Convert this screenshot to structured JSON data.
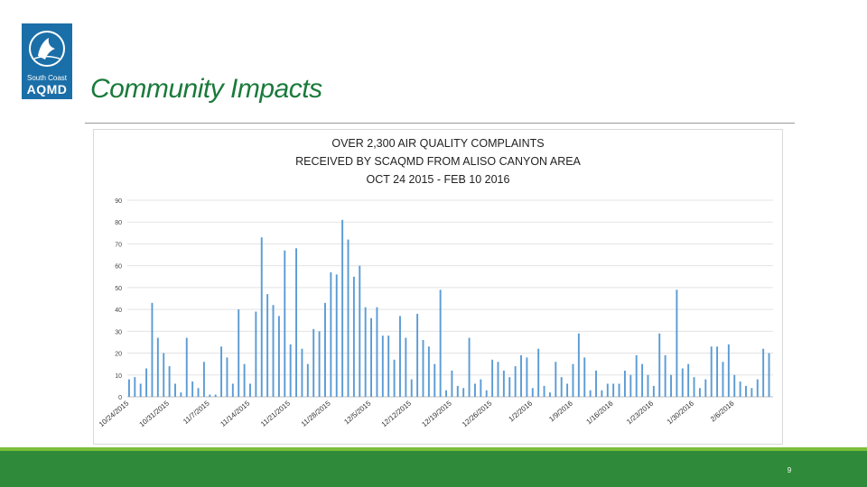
{
  "logo": {
    "line1": "South Coast",
    "line2": "AQMD"
  },
  "slide_title": "Community Impacts",
  "page_number": "9",
  "colors": {
    "bar": "#5b9bd5",
    "title_green": "#1a7a3b",
    "footer_green": "#2f8a3a",
    "logo_blue": "#1b6fa8"
  },
  "chart_data": {
    "type": "bar",
    "title_lines": [
      "OVER 2,300 AIR QUALITY COMPLAINTS",
      "RECEIVED BY SCAQMD FROM ALISO CANYON AREA",
      "OCT 24 2015 - FEB 10 2016"
    ],
    "ylim": [
      0,
      90
    ],
    "yticks": [
      0,
      10,
      20,
      30,
      40,
      50,
      60,
      70,
      80,
      90
    ],
    "xtick_labels": [
      "10/24/2015",
      "10/31/2015",
      "11/7/2015",
      "11/14/2015",
      "11/21/2015",
      "11/28/2015",
      "12/5/2015",
      "12/12/2015",
      "12/19/2015",
      "12/26/2015",
      "1/2/2016",
      "1/9/2016",
      "1/16/2016",
      "1/23/2016",
      "1/30/2016",
      "2/6/2016"
    ],
    "start_date": "10/24/2015",
    "end_date": "2/10/2016",
    "values": [
      8,
      9,
      6,
      13,
      43,
      27,
      20,
      14,
      6,
      2,
      27,
      7,
      4,
      16,
      1,
      1,
      23,
      18,
      6,
      40,
      15,
      6,
      39,
      73,
      47,
      42,
      37,
      67,
      24,
      68,
      22,
      15,
      31,
      30,
      43,
      57,
      56,
      81,
      72,
      55,
      60,
      41,
      36,
      41,
      28,
      28,
      17,
      37,
      27,
      8,
      38,
      26,
      23,
      15,
      49,
      3,
      12,
      5,
      4,
      27,
      6,
      8,
      3,
      17,
      16,
      12,
      9,
      14,
      19,
      18,
      4,
      22,
      5,
      2,
      16,
      9,
      6,
      15,
      29,
      18,
      3,
      12,
      3,
      6,
      6,
      6,
      12,
      10,
      19,
      15,
      10,
      5,
      29,
      19,
      10,
      49,
      13,
      15,
      9,
      4,
      8,
      23,
      23,
      16,
      24,
      10,
      7,
      5,
      4,
      8,
      22,
      20
    ]
  }
}
